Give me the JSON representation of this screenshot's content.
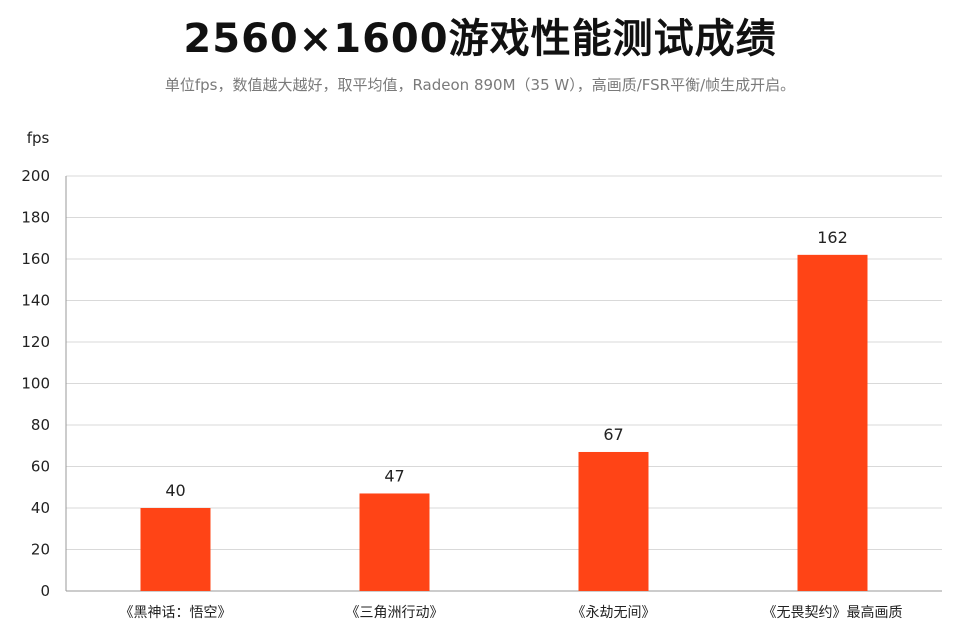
{
  "chart_data": {
    "type": "bar",
    "title": "2560×1600游戏性能测试成绩",
    "subtitle": "单位fps，数值越大越好，取平均值，Radeon 890M（35 W），高画质/FSR平衡/帧生成开启。",
    "ylabel": "fps",
    "xlabel": "",
    "ylim": [
      0,
      200
    ],
    "yticks": [
      0,
      20,
      40,
      60,
      80,
      100,
      120,
      140,
      160,
      180,
      200
    ],
    "grid": true,
    "legend": "none",
    "categories": [
      "《黑神话：悟空》",
      "《三角洲行动》",
      "《永劫无间》",
      "《无畏契约》最高画质"
    ],
    "values": [
      40,
      47,
      67,
      162
    ],
    "bar_color": "#FF4416",
    "grid_color": "#D9D9D9",
    "axis_color": "#999999"
  }
}
